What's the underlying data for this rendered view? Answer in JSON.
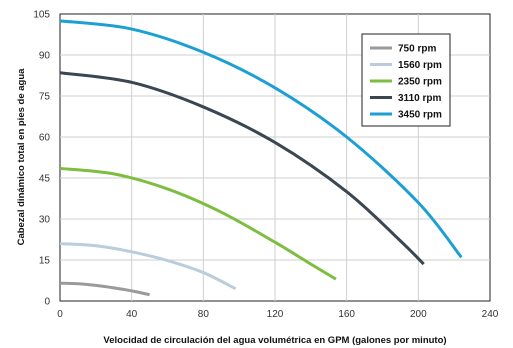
{
  "chart_data": {
    "type": "line",
    "title": "",
    "xlabel": "Velocidad de circulación del agua volumétrica en GPM (galones por minuto)",
    "ylabel": "Cabezal dinámico total en pies de agua",
    "xlim": [
      0,
      240
    ],
    "ylim": [
      0,
      105
    ],
    "xticks": [
      "0",
      "40",
      "80",
      "120",
      "160",
      "200",
      "240"
    ],
    "yticks": [
      "0",
      "15",
      "30",
      "45",
      "60",
      "75",
      "90",
      "105"
    ],
    "grid": true,
    "legend_position": "top-right",
    "series": [
      {
        "name": "750 rpm",
        "color": "#9a9a9a",
        "x": [
          0,
          10,
          20,
          30,
          40,
          50
        ],
        "y": [
          6.5,
          6.3,
          5.7,
          4.8,
          3.7,
          2.3
        ]
      },
      {
        "name": "1560 rpm",
        "color": "#b9cddb",
        "x": [
          0,
          20,
          40,
          60,
          80,
          98
        ],
        "y": [
          21,
          20.2,
          18,
          14.8,
          10.4,
          4.5
        ]
      },
      {
        "name": "2350 rpm",
        "color": "#7dbd3f",
        "x": [
          0,
          30,
          60,
          90,
          120,
          140,
          154
        ],
        "y": [
          48.5,
          46.5,
          41,
          32.5,
          21.5,
          13.5,
          8
        ]
      },
      {
        "name": "3110 rpm",
        "color": "#3a4651",
        "x": [
          0,
          40,
          80,
          120,
          160,
          190,
          203
        ],
        "y": [
          83.5,
          80,
          71,
          58,
          40,
          22,
          13.5
        ]
      },
      {
        "name": "3450 rpm",
        "color": "#1ca0d4",
        "x": [
          0,
          40,
          80,
          120,
          160,
          200,
          224
        ],
        "y": [
          102.5,
          99.5,
          91,
          78,
          60,
          36,
          16
        ]
      }
    ]
  }
}
